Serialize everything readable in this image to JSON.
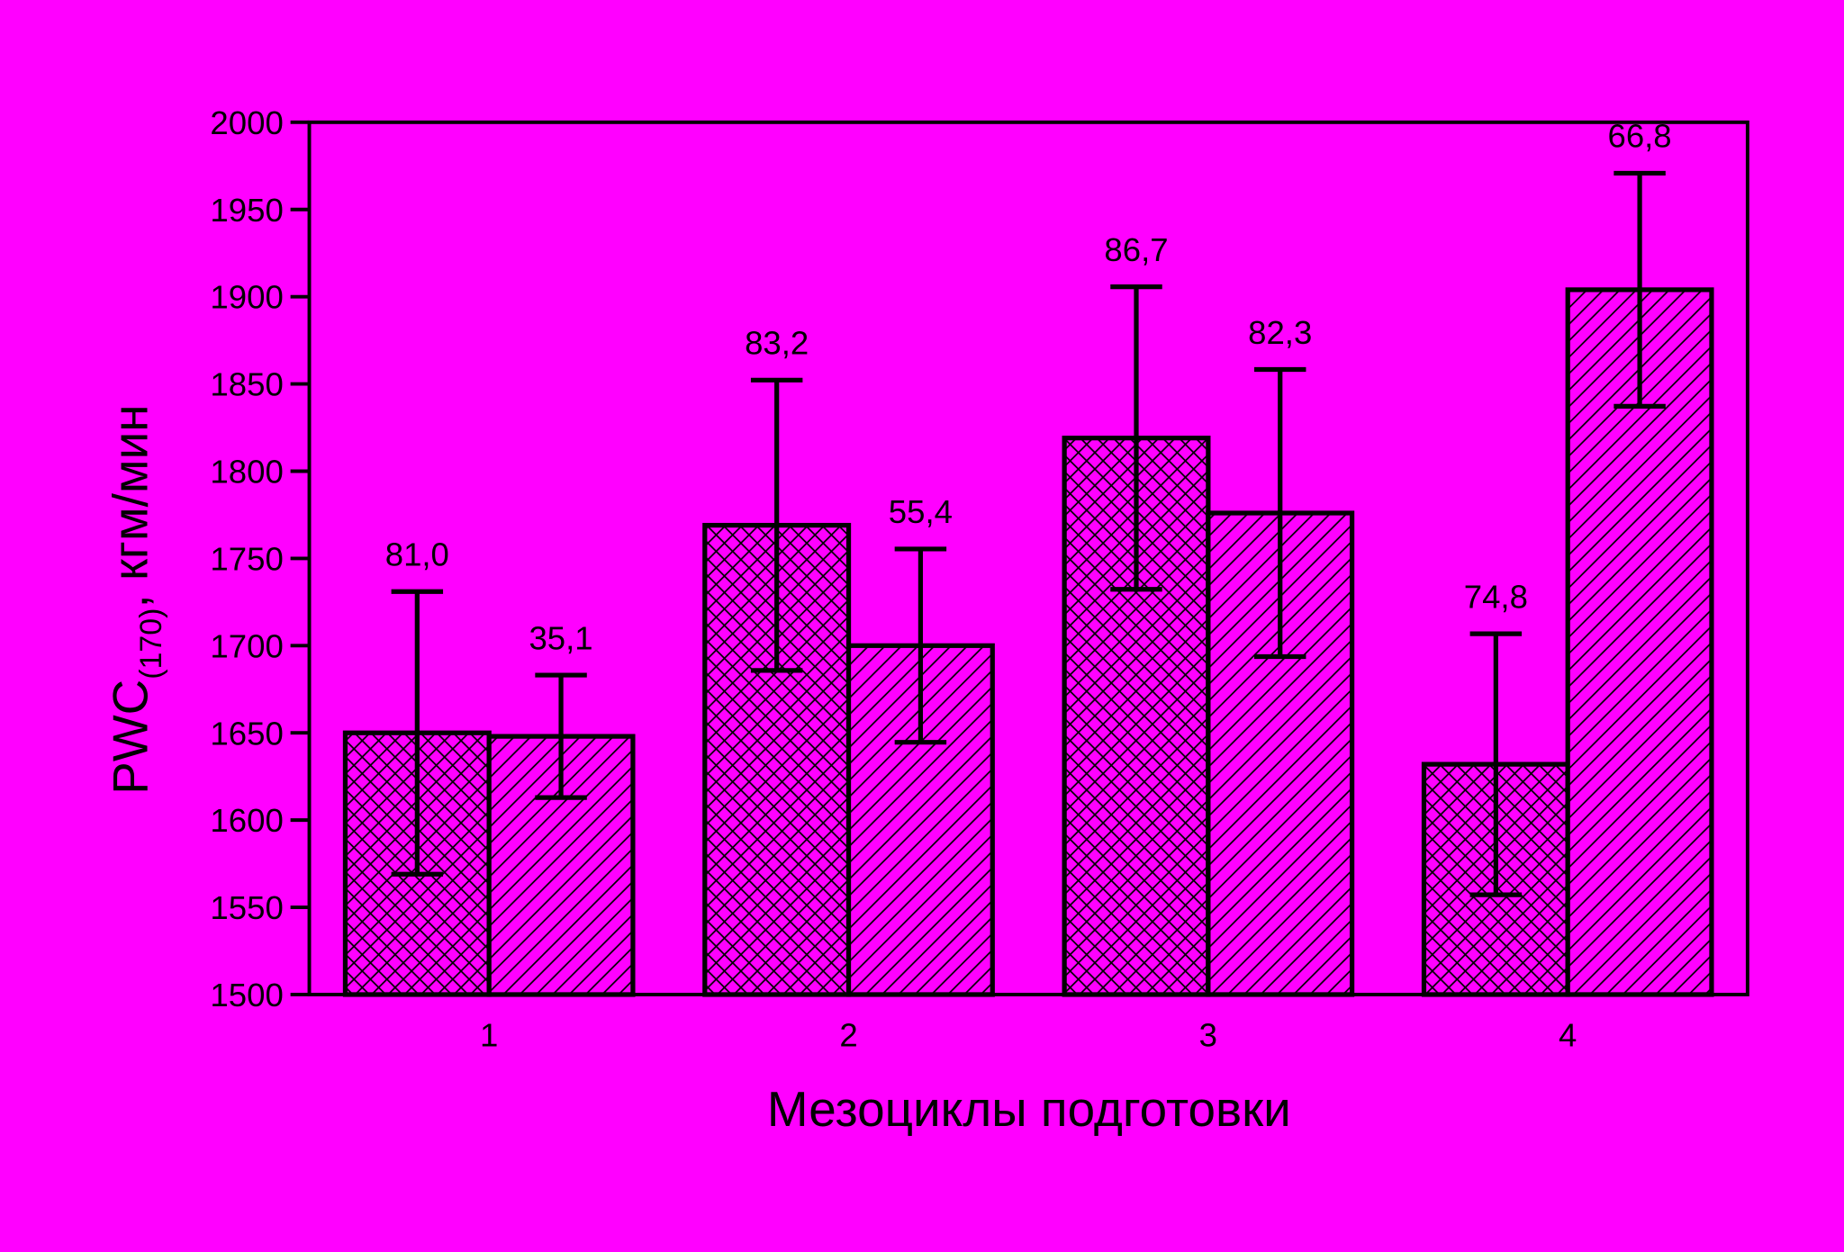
{
  "chart_data": {
    "type": "bar",
    "xlabel": "Мезоциклы подготовки",
    "ylabel": {
      "main": "PWC",
      "sub": "(170)",
      "unit": ", кгм/мин"
    },
    "categories": [
      "1",
      "2",
      "3",
      "4"
    ],
    "series": [
      {
        "color": "#ff00ff",
        "hatch": "cross",
        "values": [
          1650,
          1769,
          1819,
          1632
        ],
        "errors": [
          81.0,
          83.2,
          86.7,
          74.8
        ],
        "value_labels": [
          "81,0",
          "83,2",
          "86,7",
          "74,8"
        ]
      },
      {
        "color": "#ff00ff",
        "hatch": "diagonal",
        "values": [
          1648,
          1700,
          1776,
          1904
        ],
        "errors": [
          35.1,
          55.4,
          82.3,
          66.8
        ],
        "value_labels": [
          "35,1",
          "55,4",
          "82,3",
          "66,8"
        ]
      }
    ],
    "ylim": [
      1500,
      2000
    ],
    "yticks": [
      1500,
      1550,
      1600,
      1650,
      1700,
      1750,
      1800,
      1850,
      1900,
      1950,
      2000
    ]
  }
}
